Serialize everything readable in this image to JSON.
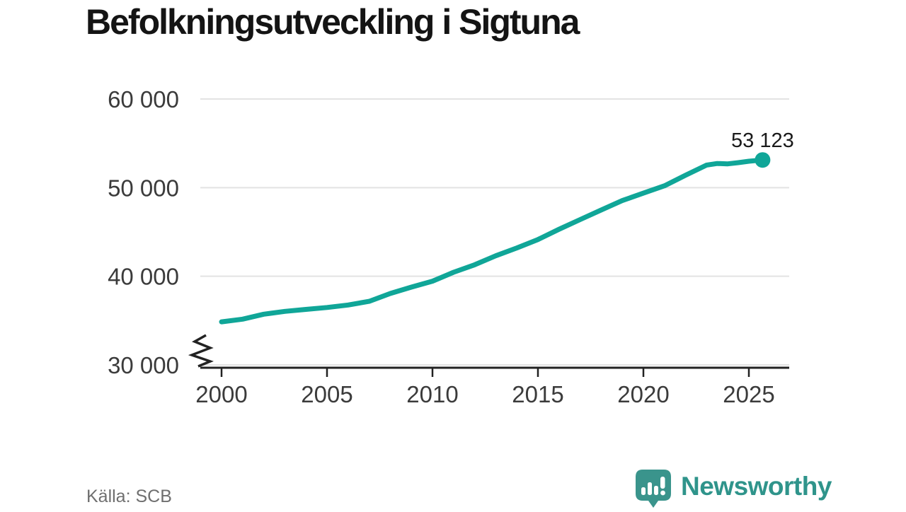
{
  "chart_data": {
    "type": "line",
    "title": "Befolkningsutveckling i Sigtuna",
    "source": "Källa: SCB",
    "series": [
      {
        "x": [
          2000,
          2001,
          2002,
          2003,
          2004,
          2005,
          2006,
          2007,
          2008,
          2009,
          2010,
          2011,
          2012,
          2013,
          2014,
          2015,
          2016,
          2017,
          2018,
          2019,
          2020,
          2021,
          2022,
          2023,
          2023.5,
          2024,
          2024.5,
          2025,
          2025.65
        ],
        "y": [
          34860,
          35160,
          35720,
          36040,
          36260,
          36480,
          36760,
          37170,
          38060,
          38780,
          39450,
          40450,
          41300,
          42310,
          43200,
          44150,
          45300,
          46400,
          47480,
          48540,
          49380,
          50210,
          51400,
          52550,
          52720,
          52680,
          52820,
          52980,
          53123
        ]
      }
    ],
    "latest_point": {
      "x": 2025.65,
      "y": 53123,
      "label": "53 123"
    },
    "xticks": {
      "values": [
        2000,
        2005,
        2010,
        2015,
        2020,
        2025
      ],
      "labels": [
        "2000",
        "2005",
        "2010",
        "2015",
        "2020",
        "2025"
      ]
    },
    "yticks": {
      "values": [
        30000,
        40000,
        50000,
        60000
      ],
      "labels": [
        "30 000",
        "40 000",
        "50 000",
        "60 000"
      ]
    },
    "xlim": [
      1999,
      2026.9
    ],
    "ylim": [
      30000,
      60000
    ],
    "axis_break": true,
    "grid": true,
    "legend": "none",
    "line_color": "#10a698",
    "axis_color": "#222222",
    "grid_color": "#e3e3e3",
    "label_color": "#3b3b3b",
    "value_label_color": "#1a1a1a"
  },
  "footer": {
    "source": "Källa: SCB",
    "brand": "Newsworthy",
    "brand_color": "#2f948b"
  }
}
